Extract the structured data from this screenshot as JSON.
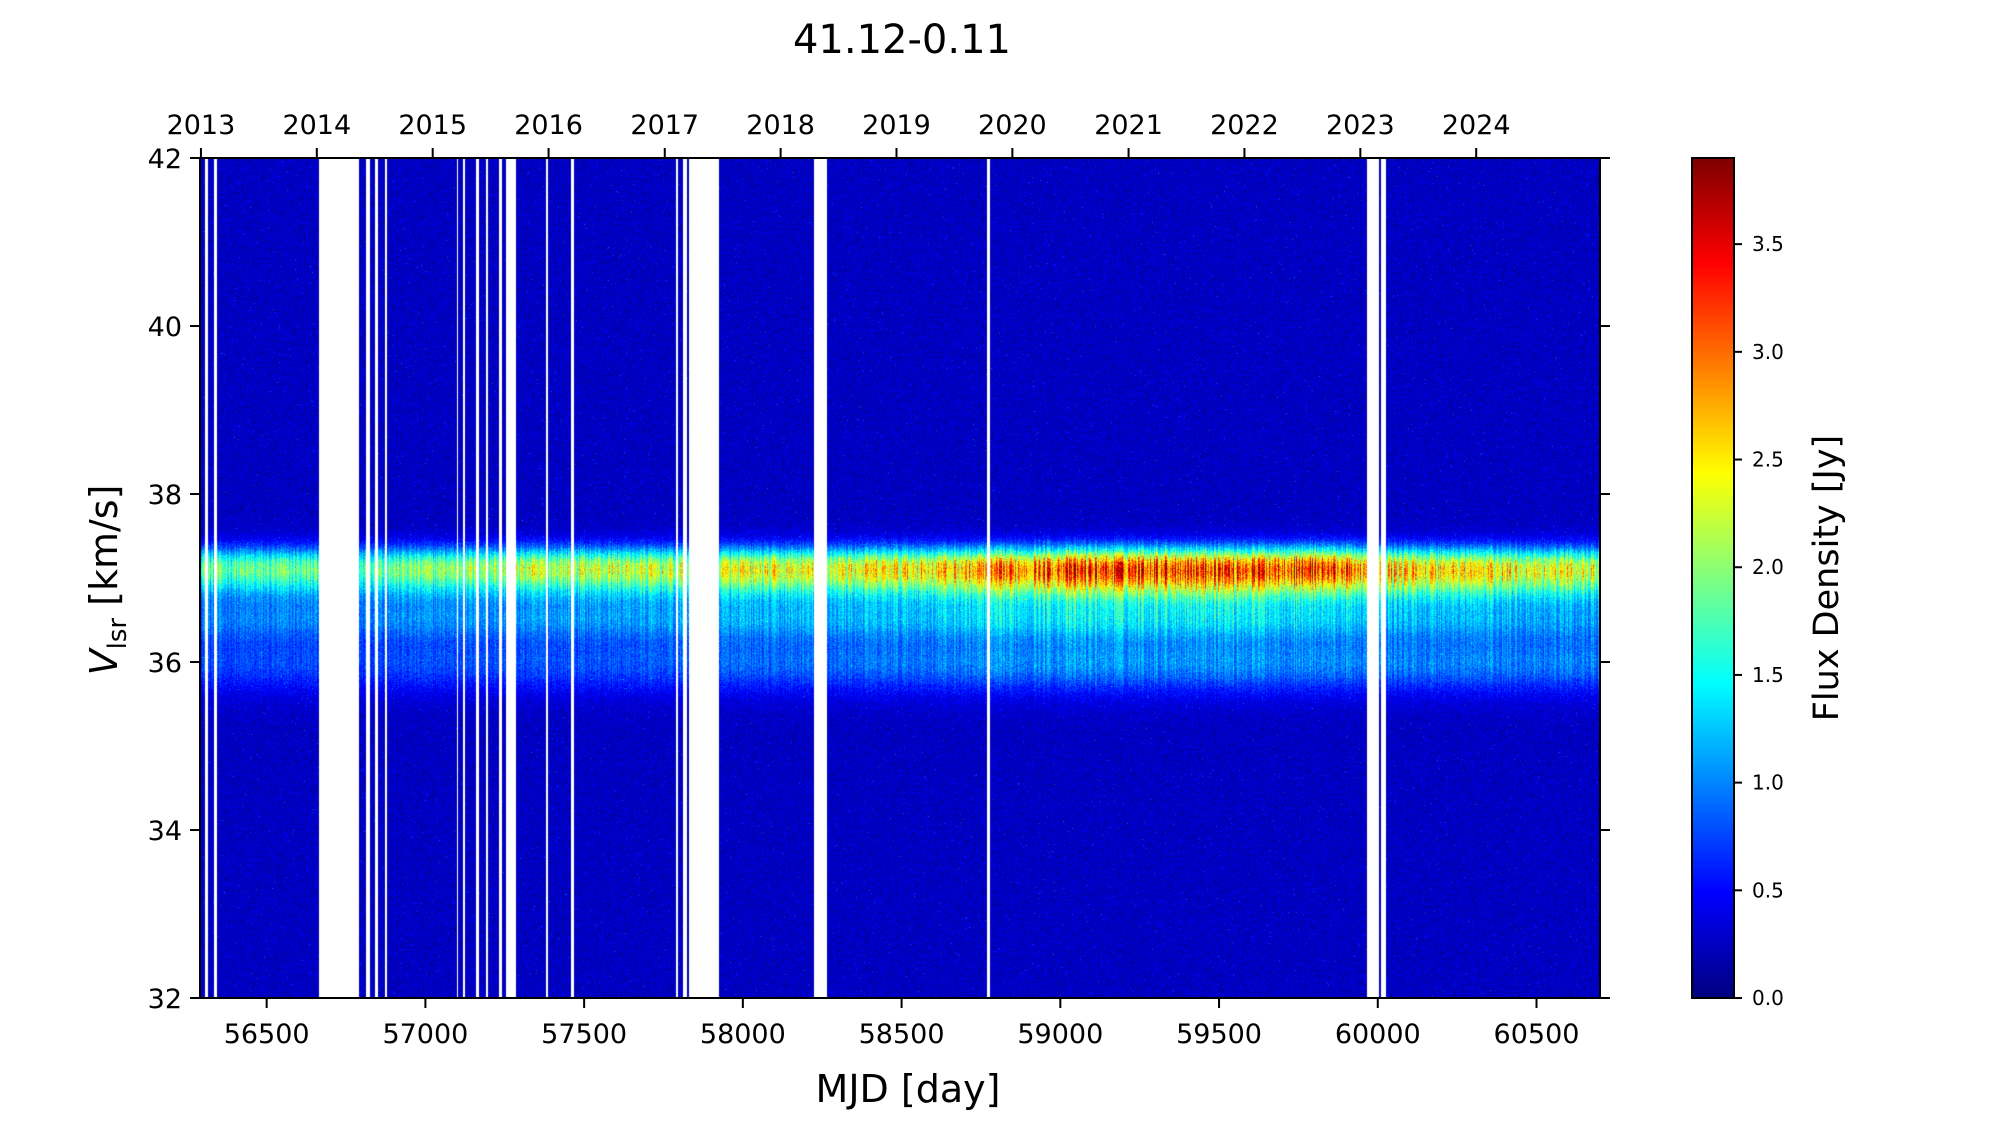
{
  "chart_data": {
    "type": "heatmap",
    "title": "41.12-0.11",
    "xlabel": "MJD [day]",
    "ylabel_main": "V",
    "ylabel_sub": "lsr",
    "ylabel_unit": " [km/s]",
    "xlim": [
      56290,
      60700
    ],
    "ylim": [
      32,
      42
    ],
    "x_ticks": [
      56500,
      57000,
      57500,
      58000,
      58500,
      59000,
      59500,
      60000,
      60500
    ],
    "y_ticks": [
      32,
      34,
      36,
      38,
      40,
      42
    ],
    "top_axis": {
      "label": "",
      "ticks": [
        {
          "label": "2013",
          "mjd": 56293
        },
        {
          "label": "2014",
          "mjd": 56658
        },
        {
          "label": "2015",
          "mjd": 57023
        },
        {
          "label": "2016",
          "mjd": 57388
        },
        {
          "label": "2017",
          "mjd": 57754
        },
        {
          "label": "2018",
          "mjd": 58119
        },
        {
          "label": "2019",
          "mjd": 58484
        },
        {
          "label": "2020",
          "mjd": 58849
        },
        {
          "label": "2021",
          "mjd": 59215
        },
        {
          "label": "2022",
          "mjd": 59580
        },
        {
          "label": "2023",
          "mjd": 59945
        },
        {
          "label": "2024",
          "mjd": 60310
        }
      ]
    },
    "colorbar": {
      "label": "Flux Density [Jy]",
      "colormap": "jet",
      "range": [
        0.0,
        3.9
      ],
      "ticks": [
        0.0,
        0.5,
        1.0,
        1.5,
        2.0,
        2.5,
        3.0,
        3.5
      ]
    },
    "emission_components": [
      {
        "velocity": 37.15,
        "width": 0.16,
        "peak_flux": [
          [
            56290,
            1.3
          ],
          [
            56700,
            1.3
          ],
          [
            57000,
            1.4
          ],
          [
            57300,
            1.6
          ],
          [
            57800,
            1.6
          ],
          [
            58300,
            1.7
          ],
          [
            58700,
            1.9
          ],
          [
            59000,
            2.3
          ],
          [
            59300,
            2.4
          ],
          [
            59600,
            2.3
          ],
          [
            59800,
            2.5
          ],
          [
            60000,
            1.9
          ],
          [
            60200,
            1.8
          ],
          [
            60700,
            1.6
          ]
        ]
      },
      {
        "velocity": 36.9,
        "width": 0.18,
        "peak_flux": [
          [
            56290,
            0.7
          ],
          [
            57500,
            0.9
          ],
          [
            58500,
            1.1
          ],
          [
            59000,
            1.5
          ],
          [
            59500,
            1.6
          ],
          [
            60000,
            1.3
          ],
          [
            60700,
            1.1
          ]
        ]
      },
      {
        "velocity": 36.5,
        "width": 0.17,
        "peak_flux": [
          [
            56290,
            0.6
          ],
          [
            57500,
            0.7
          ],
          [
            58500,
            0.8
          ],
          [
            59000,
            1.0
          ],
          [
            59600,
            1.0
          ],
          [
            60000,
            0.8
          ],
          [
            60700,
            0.7
          ]
        ]
      },
      {
        "velocity": 36.0,
        "width": 0.25,
        "peak_flux": [
          [
            56290,
            0.5
          ],
          [
            57500,
            0.55
          ],
          [
            58500,
            0.7
          ],
          [
            59000,
            0.85
          ],
          [
            59600,
            0.85
          ],
          [
            60000,
            0.75
          ],
          [
            60700,
            0.75
          ]
        ]
      }
    ],
    "noise_level": 0.25,
    "observation_gaps": [
      [
        56305,
        56315
      ],
      [
        56335,
        56345
      ],
      [
        56665,
        56790
      ],
      [
        56812,
        56825
      ],
      [
        56840,
        56850
      ],
      [
        56872,
        56880
      ],
      [
        57098,
        57104
      ],
      [
        57118,
        57126
      ],
      [
        57160,
        57170
      ],
      [
        57190,
        57198
      ],
      [
        57232,
        57240
      ],
      [
        57255,
        57285
      ],
      [
        57380,
        57386
      ],
      [
        57460,
        57467
      ],
      [
        57790,
        57797
      ],
      [
        57810,
        57825
      ],
      [
        57830,
        57925
      ],
      [
        58225,
        58265
      ],
      [
        58768,
        58778
      ],
      [
        59965,
        60005
      ],
      [
        60010,
        60025
      ]
    ]
  }
}
